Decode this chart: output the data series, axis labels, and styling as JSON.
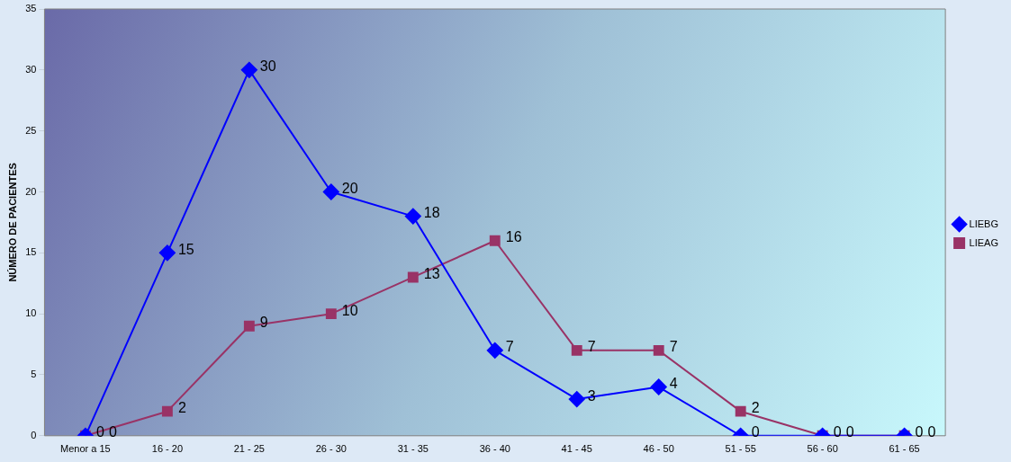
{
  "chart_data": {
    "type": "line",
    "ylabel": "NÚMERO DE PACIENTES",
    "categories": [
      "Menor a 15",
      "16 - 20",
      "21 - 25",
      "26 - 30",
      "31 - 35",
      "36 - 40",
      "41 - 45",
      "46 - 50",
      "51 - 55",
      "56 - 60",
      "61 - 65"
    ],
    "series": [
      {
        "name": "LIEBG",
        "color": "#0000ff",
        "marker": "diamond",
        "values": [
          0,
          15,
          30,
          20,
          18,
          7,
          3,
          4,
          0,
          0,
          0
        ]
      },
      {
        "name": "LIEAG",
        "color": "#993366",
        "marker": "square",
        "values": [
          0,
          2,
          9,
          10,
          13,
          16,
          7,
          7,
          2,
          0,
          0
        ]
      }
    ],
    "ylim": [
      0,
      35
    ],
    "yticks": [
      0,
      5,
      10,
      15,
      20,
      25,
      30,
      35
    ],
    "grid": false,
    "legend": "right",
    "data_labels": true
  }
}
